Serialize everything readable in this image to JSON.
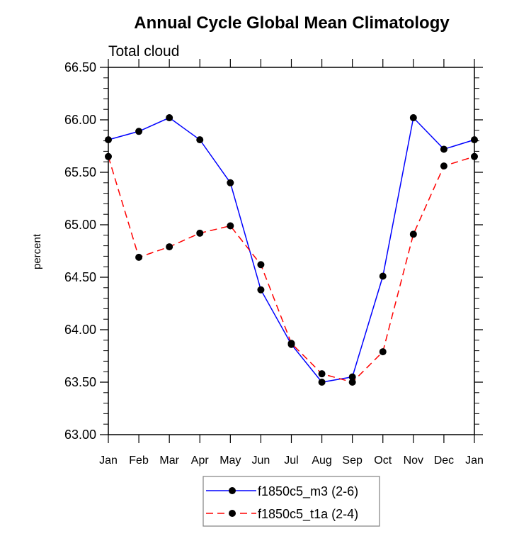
{
  "chart_data": {
    "type": "line",
    "title": "Annual Cycle Global Mean Climatology",
    "subtitle": "Total cloud",
    "xlabel": "",
    "ylabel": "percent",
    "x": [
      "Jan",
      "Feb",
      "Mar",
      "Apr",
      "May",
      "Jun",
      "Jul",
      "Aug",
      "Sep",
      "Oct",
      "Nov",
      "Dec",
      "Jan"
    ],
    "ylim": [
      63.0,
      66.5
    ],
    "yticks": [
      "63.00",
      "63.50",
      "64.00",
      "64.50",
      "65.00",
      "65.50",
      "66.00",
      "66.50"
    ],
    "yminor_step": 0.1,
    "grid": false,
    "legend_position": "bottom-center",
    "series": [
      {
        "name": "f1850c5_m3 (2-6)",
        "color": "#0000ff",
        "style": "solid",
        "marker": "filled-circle",
        "values": [
          65.81,
          65.89,
          66.02,
          65.81,
          65.4,
          64.38,
          63.86,
          63.5,
          63.55,
          64.51,
          66.02,
          65.72,
          65.81
        ]
      },
      {
        "name": "f1850c5_t1a (2-4)",
        "color": "#ff0000",
        "style": "dashed",
        "marker": "filled-circle",
        "values": [
          65.65,
          64.69,
          64.79,
          64.92,
          64.99,
          64.62,
          63.87,
          63.58,
          63.5,
          63.79,
          64.91,
          65.56,
          65.65
        ]
      }
    ]
  }
}
